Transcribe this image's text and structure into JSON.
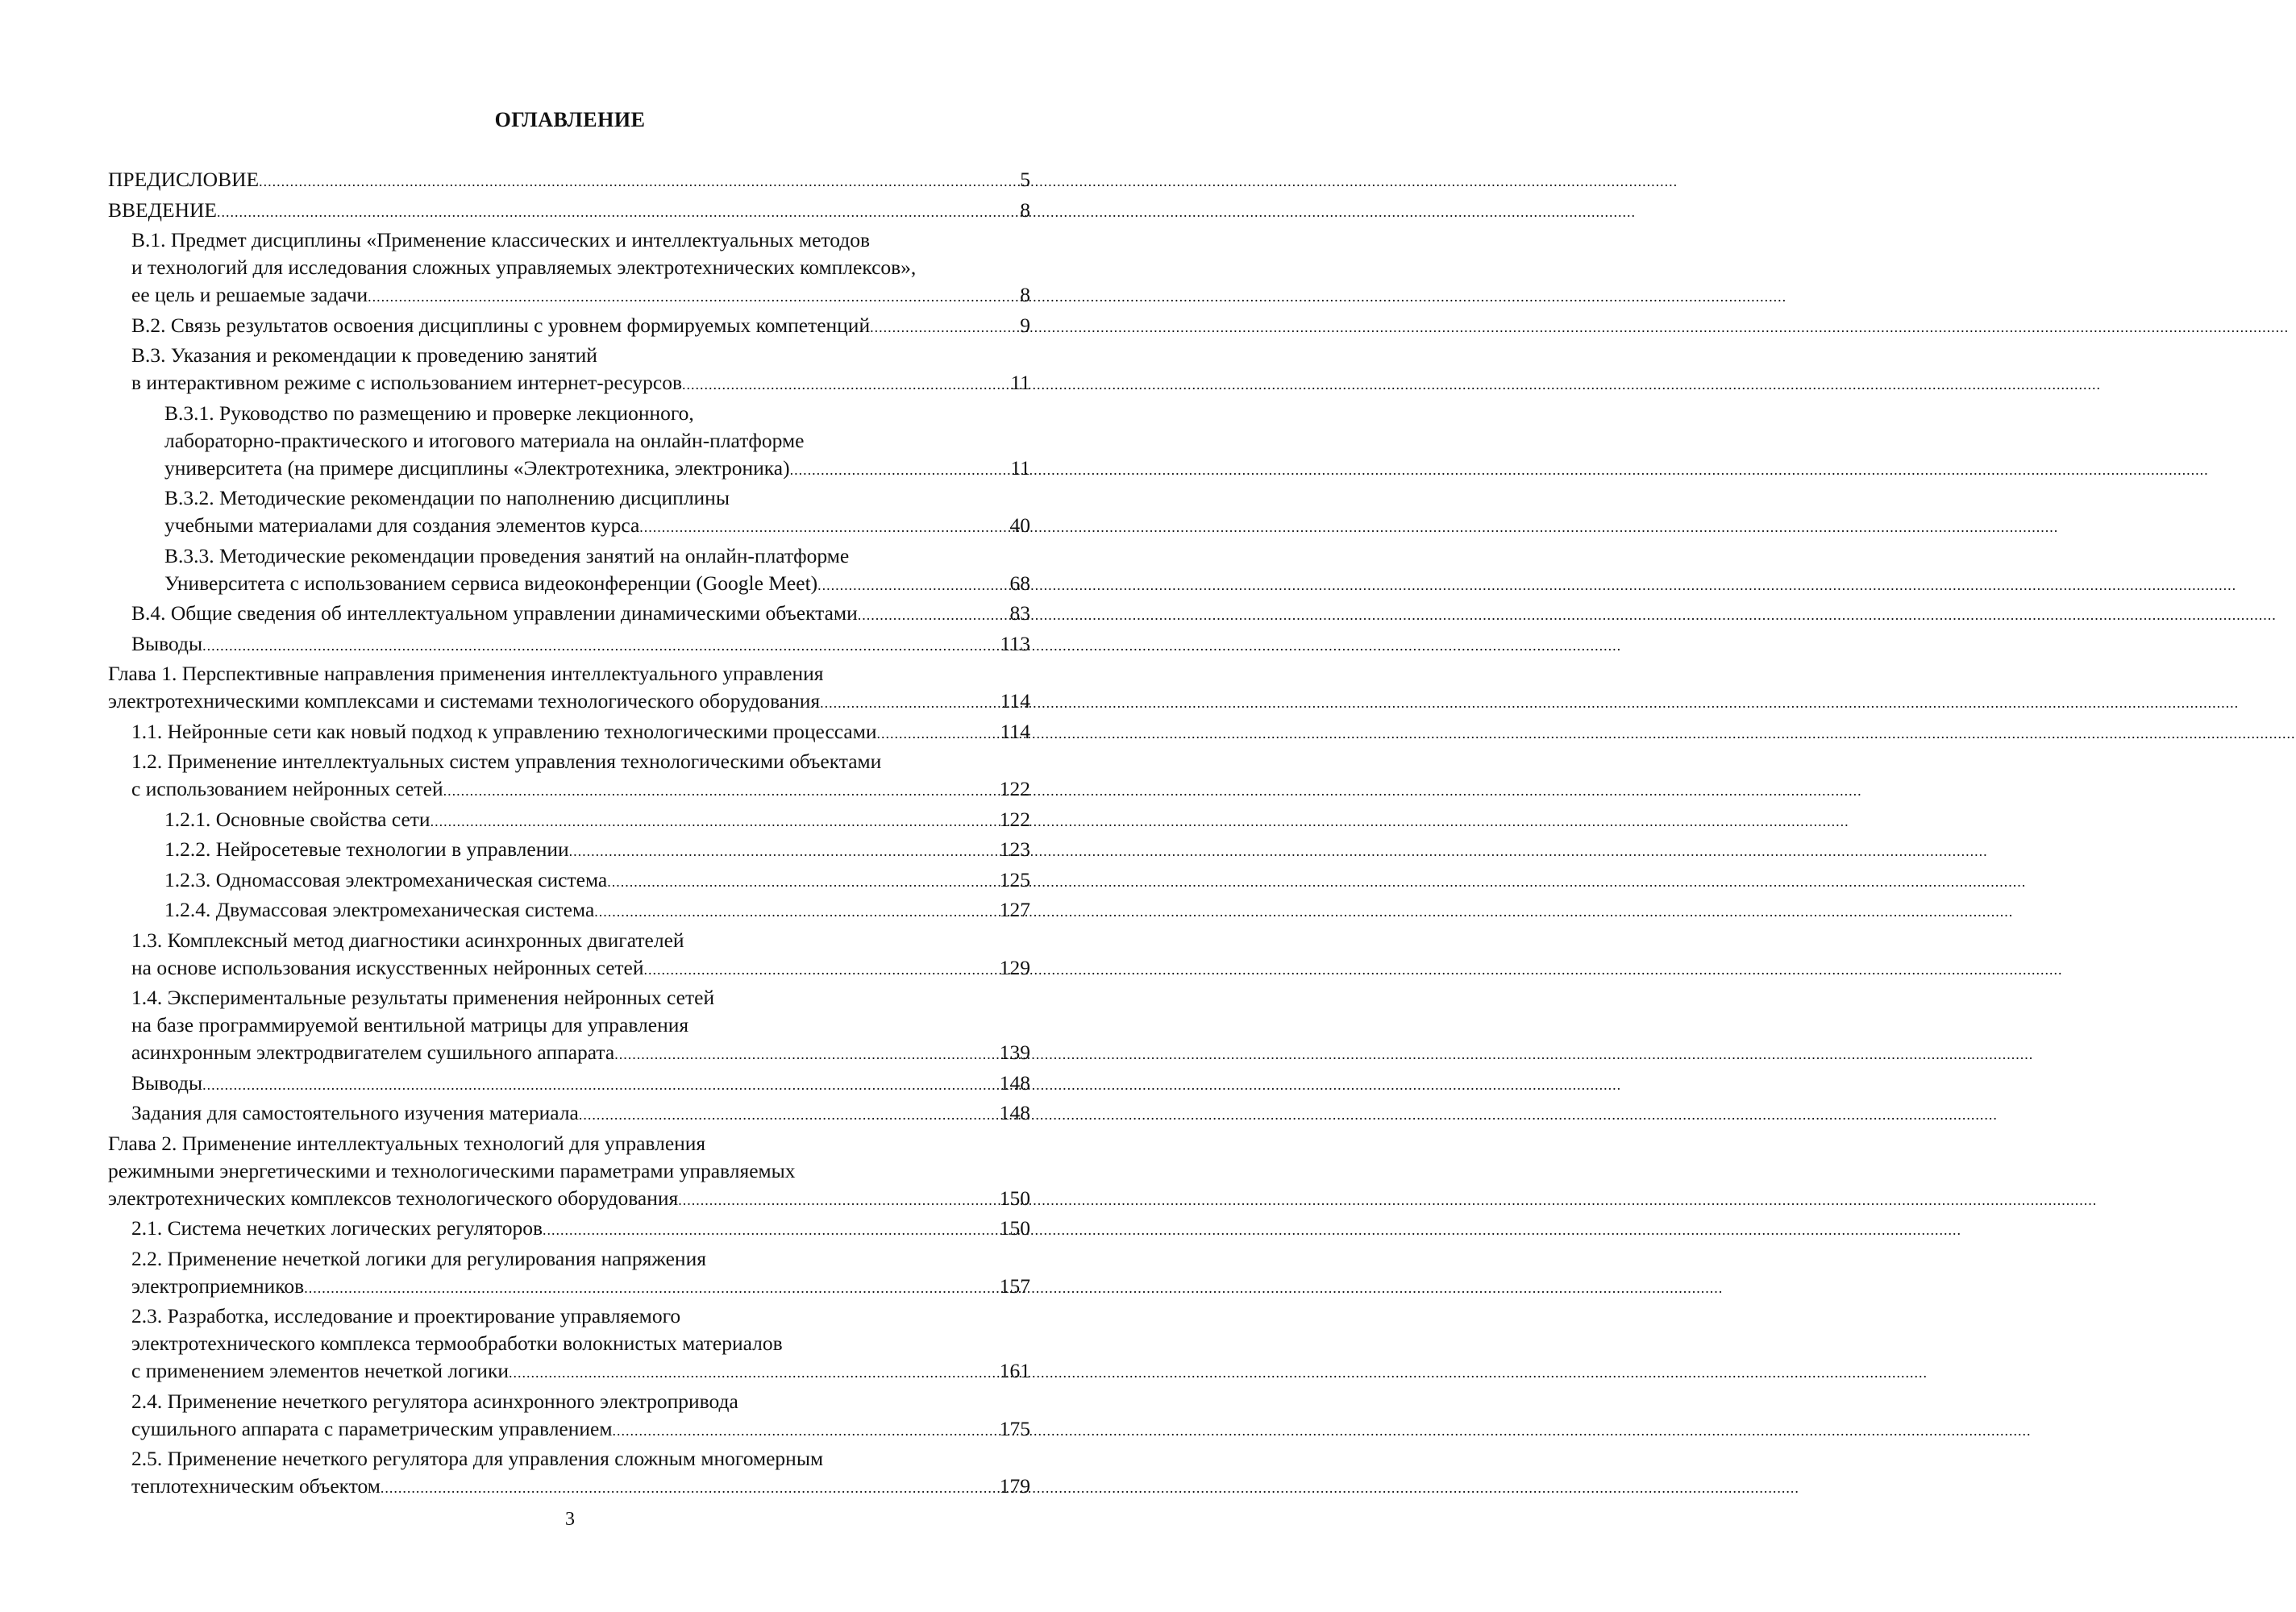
{
  "title": "ОГЛАВЛЕНИЕ",
  "entries": [
    {
      "level": 0,
      "lines": [
        "ПРЕДИСЛОВИЕ"
      ],
      "page": "5"
    },
    {
      "level": 0,
      "lines": [
        "ВВЕДЕНИЕ"
      ],
      "page": "8"
    },
    {
      "level": 1,
      "lines": [
        "В.1. Предмет дисциплины «Применение классических и интеллектуальных методов",
        "и технологий для исследования сложных управляемых электротехнических комплексов»,",
        "ее цель и решаемые задачи"
      ],
      "page": "8"
    },
    {
      "level": 1,
      "lines": [
        "В.2. Связь результатов освоения дисциплины с уровнем формируемых компетенций"
      ],
      "page": "9"
    },
    {
      "level": 1,
      "lines": [
        "В.3. Указания и рекомендации к проведению занятий",
        "в интерактивном режиме с использованием интернет-ресурсов"
      ],
      "page": "11"
    },
    {
      "level": 2,
      "lines": [
        "В.3.1. Руководство по размещению и проверке лекционного,",
        "лабораторно-практического и итогового материала на онлайн-платформе",
        "университета (на примере дисциплины «Электротехника, электроника)"
      ],
      "page": "11"
    },
    {
      "level": 2,
      "lines": [
        "В.3.2. Методические рекомендации по наполнению дисциплины",
        "учебными материалами для создания элементов курса"
      ],
      "page": "40"
    },
    {
      "level": 2,
      "lines": [
        "В.3.3. Методические рекомендации проведения занятий на онлайн-платформе",
        "Университета с использованием сервиса видеоконференции (Google Meet)"
      ],
      "page": "68"
    },
    {
      "level": 1,
      "lines": [
        "В.4. Общие сведения об интеллектуальном управлении динамическими объектами"
      ],
      "page": "83"
    },
    {
      "level": 1,
      "lines": [
        "Выводы"
      ],
      "page": "113"
    },
    {
      "level": 0,
      "lines": [
        "Глава 1. Перспективные направления применения интеллектуального управления",
        "электротехническими комплексами и системами технологического оборудования"
      ],
      "page": "114"
    },
    {
      "level": 1,
      "lines": [
        "1.1. Нейронные сети как новый подход к управлению технологическими процессами"
      ],
      "page": "114"
    },
    {
      "level": 1,
      "lines": [
        "1.2. Применение интеллектуальных систем управления технологическими объектами",
        "с использованием нейронных сетей"
      ],
      "page": "122"
    },
    {
      "level": 2,
      "lines": [
        "1.2.1. Основные свойства сети"
      ],
      "page": "122"
    },
    {
      "level": 2,
      "lines": [
        "1.2.2. Нейросетевые технологии в управлении"
      ],
      "page": "123"
    },
    {
      "level": 2,
      "lines": [
        "1.2.3. Одномассовая электромеханическая система"
      ],
      "page": "125"
    },
    {
      "level": 2,
      "lines": [
        "1.2.4. Двумассовая электромеханическая система"
      ],
      "page": "127"
    },
    {
      "level": 1,
      "lines": [
        "1.3. Комплексный метод диагностики асинхронных двигателей",
        "на основе использования искусственных нейронных сетей"
      ],
      "page": "129"
    },
    {
      "level": 1,
      "lines": [
        "1.4. Экспериментальные результаты применения нейронных сетей",
        "на базе программируемой вентильной матрицы для управления",
        "асинхронным электродвигателем сушильного аппарата"
      ],
      "page": "139"
    },
    {
      "level": 1,
      "lines": [
        "Выводы"
      ],
      "page": "148"
    },
    {
      "level": 1,
      "lines": [
        "Задания для самостоятельного изучения материала"
      ],
      "page": "148"
    },
    {
      "level": 0,
      "lines": [
        "Глава 2. Применение интеллектуальных технологий для управления",
        "режимными энергетическими и технологическими параметрами управляемых",
        "электротехнических комплексов технологического оборудования"
      ],
      "page": "150"
    },
    {
      "level": 1,
      "lines": [
        "2.1. Система нечетких логических регуляторов"
      ],
      "page": "150"
    },
    {
      "level": 1,
      "lines": [
        "2.2. Применение нечеткой логики для регулирования напряжения",
        "электроприемников"
      ],
      "page": "157"
    },
    {
      "level": 1,
      "lines": [
        "2.3. Разработка, исследование и проектирование управляемого",
        "электротехнического комплекса термообработки волокнистых материалов",
        "с применением элементов нечеткой логики"
      ],
      "page": "161"
    },
    {
      "level": 1,
      "lines": [
        "2.4. Применение нечеткого регулятора асинхронного электропривода",
        "сушильного аппарата с параметрическим управлением"
      ],
      "page": "175"
    },
    {
      "level": 1,
      "lines": [
        "2.5. Применение нечеткого регулятора для управления сложным многомерным",
        "теплотехническим объектом"
      ],
      "page": "179"
    }
  ],
  "page_number": "3"
}
